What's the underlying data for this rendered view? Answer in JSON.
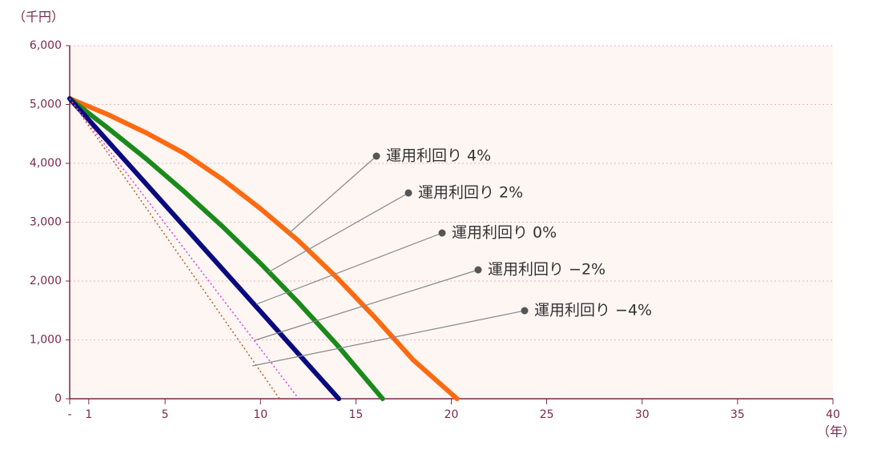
{
  "chart_data": {
    "type": "line",
    "y_unit": "（千円）",
    "x_unit": "（年）",
    "xlim": [
      0,
      40
    ],
    "ylim": [
      0,
      6000
    ],
    "xticks": [
      {
        "value": 0,
        "label": "-"
      },
      1,
      5,
      10,
      15,
      20,
      25,
      30,
      35,
      40
    ],
    "yticks": [
      0,
      {
        "value": 1000,
        "label": "1,000"
      },
      {
        "value": 2000,
        "label": "2,000"
      },
      {
        "value": 3000,
        "label": "3,000"
      },
      {
        "value": 4000,
        "label": "4,000"
      },
      {
        "value": 5000,
        "label": "5,000"
      },
      {
        "value": 6000,
        "label": "6,000"
      }
    ],
    "grid": true,
    "series": [
      {
        "name": "運用利回り 4%",
        "color": "#ff6a10",
        "style": "solid",
        "x": [
          0,
          2,
          4,
          6,
          8,
          10,
          12,
          14,
          16,
          18,
          20.3
        ],
        "values": [
          5100,
          4830,
          4520,
          4170,
          3730,
          3230,
          2680,
          2060,
          1380,
          660,
          0
        ]
      },
      {
        "name": "運用利回り 2%",
        "color": "#1a8a1a",
        "style": "solid",
        "x": [
          0,
          2,
          4,
          6,
          8,
          10,
          12,
          14,
          16.4
        ],
        "values": [
          5100,
          4600,
          4080,
          3520,
          2930,
          2300,
          1630,
          920,
          0
        ]
      },
      {
        "name": "運用利回り 0%",
        "color": "#0a0a80",
        "style": "solid",
        "x": [
          0,
          14.1
        ],
        "values": [
          5100,
          0
        ]
      },
      {
        "name": "運用利回り −2%",
        "color": "#e040e0",
        "style": "dotted",
        "x": [
          0,
          12
        ],
        "values": [
          5100,
          0
        ]
      },
      {
        "name": "運用利回り −4%",
        "color": "#c06020",
        "style": "dotted",
        "x": [
          0,
          11
        ],
        "values": [
          5100,
          0
        ]
      }
    ]
  }
}
